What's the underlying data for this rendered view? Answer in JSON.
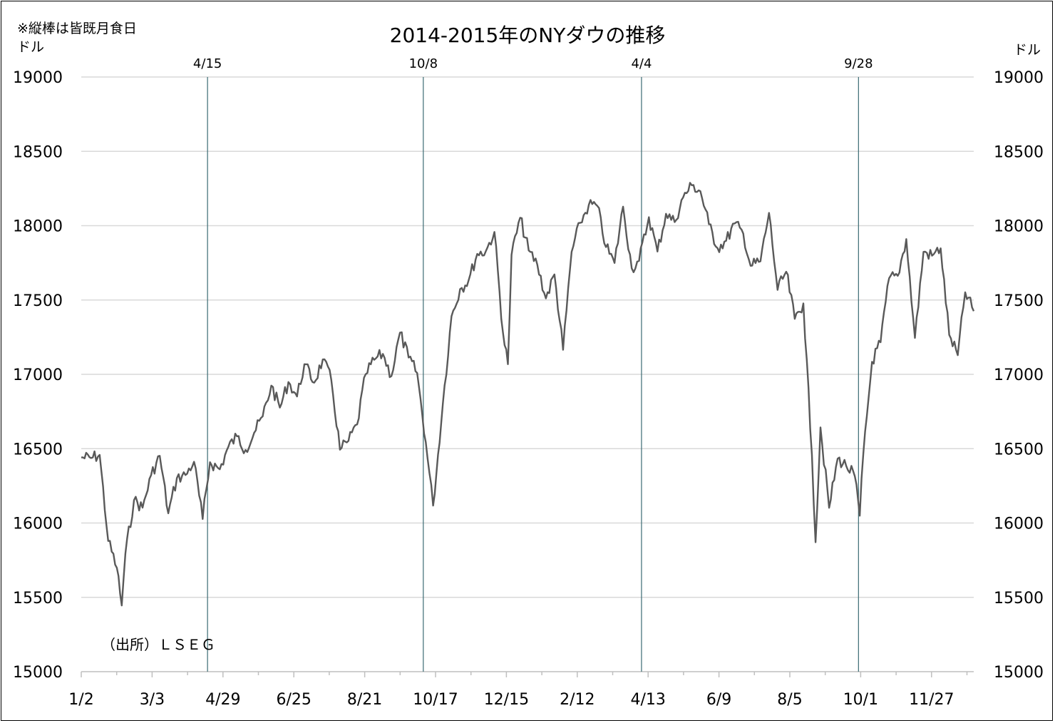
{
  "chart_data": {
    "type": "line",
    "title": "2014-2015年のNYダウの推移",
    "note": "※縦棒は皆既月食日",
    "ylabel_left": "ドル",
    "ylabel_right": "ドル",
    "source": "（出所）ＬＳＥＧ",
    "ylim": [
      15000,
      19000
    ],
    "yticks": [
      "15000",
      "15500",
      "16000",
      "16500",
      "17000",
      "17500",
      "18000",
      "18500",
      "19000"
    ],
    "xticks": [
      "1/2",
      "3/3",
      "4/29",
      "6/25",
      "8/21",
      "10/17",
      "12/15",
      "2/12",
      "4/13",
      "6/9",
      "8/5",
      "10/1",
      "11/27"
    ],
    "xlim": [
      "2014-01-02",
      "2015-12-31"
    ],
    "grid": true,
    "eclipse_markers": [
      {
        "label": "4/15",
        "date": "2014-04-15"
      },
      {
        "label": "10/8",
        "date": "2014-10-08"
      },
      {
        "label": "4/4",
        "date": "2015-04-04"
      },
      {
        "label": "9/28",
        "date": "2015-09-28"
      }
    ],
    "series": [
      {
        "color": "#595959",
        "points": [
          [
            "2014-01-02",
            16441
          ],
          [
            "2014-01-10",
            16437
          ],
          [
            "2014-01-17",
            16458
          ],
          [
            "2014-01-24",
            15879
          ],
          [
            "2014-01-31",
            15699
          ],
          [
            "2014-02-04",
            15445
          ],
          [
            "2014-02-07",
            15794
          ],
          [
            "2014-02-14",
            16154
          ],
          [
            "2014-02-21",
            16103
          ],
          [
            "2014-02-28",
            16322
          ],
          [
            "2014-03-07",
            16452
          ],
          [
            "2014-03-14",
            16065
          ],
          [
            "2014-03-21",
            16302
          ],
          [
            "2014-03-28",
            16323
          ],
          [
            "2014-04-04",
            16412
          ],
          [
            "2014-04-11",
            16027
          ],
          [
            "2014-04-17",
            16409
          ],
          [
            "2014-04-25",
            16361
          ],
          [
            "2014-05-02",
            16513
          ],
          [
            "2014-05-09",
            16583
          ],
          [
            "2014-05-16",
            16491
          ],
          [
            "2014-05-23",
            16606
          ],
          [
            "2014-05-30",
            16717
          ],
          [
            "2014-06-06",
            16924
          ],
          [
            "2014-06-13",
            16776
          ],
          [
            "2014-06-20",
            16948
          ],
          [
            "2014-06-27",
            16851
          ],
          [
            "2014-07-03",
            17068
          ],
          [
            "2014-07-11",
            16944
          ],
          [
            "2014-07-18",
            17100
          ],
          [
            "2014-07-25",
            16961
          ],
          [
            "2014-08-01",
            16493
          ],
          [
            "2014-08-08",
            16553
          ],
          [
            "2014-08-15",
            16663
          ],
          [
            "2014-08-22",
            17001
          ],
          [
            "2014-08-29",
            17098
          ],
          [
            "2014-09-05",
            17137
          ],
          [
            "2014-09-12",
            16988
          ],
          [
            "2014-09-19",
            17280
          ],
          [
            "2014-09-26",
            17113
          ],
          [
            "2014-10-03",
            17009
          ],
          [
            "2014-10-10",
            16544
          ],
          [
            "2014-10-16",
            16117
          ],
          [
            "2014-10-24",
            16805
          ],
          [
            "2014-10-31",
            17391
          ],
          [
            "2014-11-07",
            17573
          ],
          [
            "2014-11-14",
            17634
          ],
          [
            "2014-11-21",
            17810
          ],
          [
            "2014-11-28",
            17828
          ],
          [
            "2014-12-05",
            17958
          ],
          [
            "2014-12-12",
            17280
          ],
          [
            "2014-12-16",
            17068
          ],
          [
            "2014-12-19",
            17804
          ],
          [
            "2014-12-26",
            18053
          ],
          [
            "2015-01-02",
            17833
          ],
          [
            "2015-01-09",
            17737
          ],
          [
            "2015-01-16",
            17511
          ],
          [
            "2015-01-23",
            17672
          ],
          [
            "2015-01-30",
            17165
          ],
          [
            "2015-02-06",
            17824
          ],
          [
            "2015-02-13",
            18019
          ],
          [
            "2015-02-20",
            18140
          ],
          [
            "2015-02-27",
            18133
          ],
          [
            "2015-03-06",
            17856
          ],
          [
            "2015-03-13",
            17749
          ],
          [
            "2015-03-20",
            18128
          ],
          [
            "2015-03-27",
            17713
          ],
          [
            "2015-04-02",
            17763
          ],
          [
            "2015-04-10",
            18057
          ],
          [
            "2015-04-17",
            17826
          ],
          [
            "2015-04-24",
            18080
          ],
          [
            "2015-05-01",
            18024
          ],
          [
            "2015-05-08",
            18191
          ],
          [
            "2015-05-15",
            18272
          ],
          [
            "2015-05-22",
            18232
          ],
          [
            "2015-05-29",
            18010
          ],
          [
            "2015-06-05",
            17849
          ],
          [
            "2015-06-12",
            17898
          ],
          [
            "2015-06-19",
            18015
          ],
          [
            "2015-06-26",
            17947
          ],
          [
            "2015-07-02",
            17730
          ],
          [
            "2015-07-10",
            17760
          ],
          [
            "2015-07-17",
            18086
          ],
          [
            "2015-07-24",
            17568
          ],
          [
            "2015-07-31",
            17690
          ],
          [
            "2015-08-07",
            17373
          ],
          [
            "2015-08-14",
            17477
          ],
          [
            "2015-08-21",
            16459
          ],
          [
            "2015-08-24",
            15871
          ],
          [
            "2015-08-28",
            16643
          ],
          [
            "2015-09-04",
            16102
          ],
          [
            "2015-09-11",
            16433
          ],
          [
            "2015-09-18",
            16384
          ],
          [
            "2015-09-25",
            16314
          ],
          [
            "2015-09-29",
            16049
          ],
          [
            "2015-10-02",
            16472
          ],
          [
            "2015-10-09",
            17084
          ],
          [
            "2015-10-16",
            17216
          ],
          [
            "2015-10-23",
            17647
          ],
          [
            "2015-10-30",
            17663
          ],
          [
            "2015-11-06",
            17910
          ],
          [
            "2015-11-13",
            17245
          ],
          [
            "2015-11-20",
            17824
          ],
          [
            "2015-11-27",
            17798
          ],
          [
            "2015-12-04",
            17848
          ],
          [
            "2015-12-11",
            17265
          ],
          [
            "2015-12-18",
            17129
          ],
          [
            "2015-12-24",
            17552
          ],
          [
            "2015-12-31",
            17425
          ]
        ]
      }
    ]
  }
}
